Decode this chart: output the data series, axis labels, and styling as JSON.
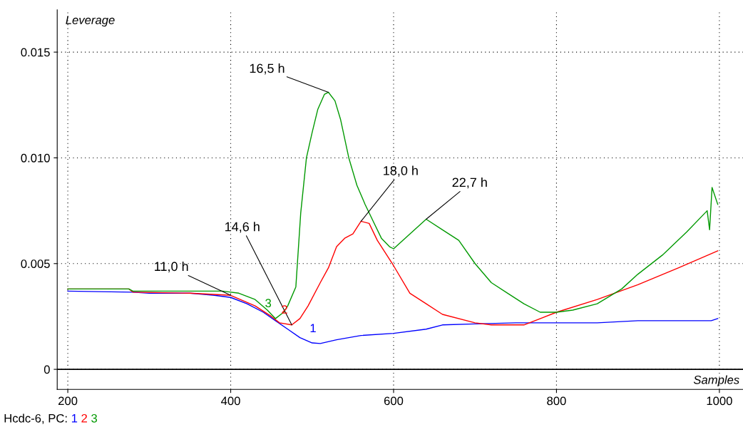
{
  "chart_data": {
    "type": "line",
    "xlabel": "Samples",
    "ylabel": "Leverage",
    "xlim": [
      187,
      1029
    ],
    "ylim": [
      -0.00095,
      0.017
    ],
    "xticks": [
      200,
      400,
      600,
      800,
      1000
    ],
    "yticks": [
      {
        "value": 0,
        "label": "0"
      },
      {
        "value": 0.005,
        "label": "0.005"
      },
      {
        "value": 0.01,
        "label": "0.010"
      },
      {
        "value": 0.015,
        "label": "0.015"
      }
    ],
    "grid": true,
    "legend": false,
    "marker": "none",
    "line_style": "solid",
    "ref_lines": [
      {
        "axis": "y",
        "value": 0,
        "color": "#000000",
        "line_style": "solid"
      }
    ],
    "series": [
      {
        "name": "1",
        "color": "#0000ff",
        "x": [
          200,
          280,
          300,
          350,
          380,
          400,
          420,
          440,
          455,
          470,
          485,
          500,
          510,
          530,
          560,
          600,
          640,
          660,
          700,
          750,
          800,
          850,
          900,
          950,
          990,
          998
        ],
        "values": [
          0.0037,
          0.00365,
          0.0036,
          0.0036,
          0.0035,
          0.0034,
          0.0031,
          0.0027,
          0.0023,
          0.0019,
          0.0015,
          0.00125,
          0.00122,
          0.0014,
          0.0016,
          0.0017,
          0.0019,
          0.0021,
          0.00215,
          0.0022,
          0.0022,
          0.0022,
          0.0023,
          0.0023,
          0.0023,
          0.0024
        ]
      },
      {
        "name": "2",
        "color": "#ff0000",
        "x": [
          200,
          275,
          280,
          350,
          400,
          430,
          450,
          460,
          475,
          485,
          495,
          510,
          520,
          530,
          540,
          550,
          560,
          570,
          580,
          590,
          600,
          620,
          640,
          660,
          700,
          720,
          760,
          800,
          850,
          900,
          950,
          998
        ],
        "values": [
          0.0038,
          0.0038,
          0.00365,
          0.0036,
          0.0035,
          0.003,
          0.0025,
          0.0022,
          0.0021,
          0.0024,
          0.003,
          0.0041,
          0.0048,
          0.0058,
          0.0062,
          0.0064,
          0.007,
          0.0069,
          0.0061,
          0.0055,
          0.0049,
          0.0036,
          0.0031,
          0.0026,
          0.0022,
          0.0021,
          0.0021,
          0.0027,
          0.0033,
          0.004,
          0.0048,
          0.0056
        ]
      },
      {
        "name": "3",
        "color": "#009900",
        "x": [
          200,
          275,
          280,
          350,
          390,
          410,
          430,
          445,
          455,
          465,
          470,
          480,
          486,
          493,
          500,
          507,
          515,
          520,
          528,
          535,
          545,
          555,
          565,
          575,
          585,
          595,
          600,
          620,
          640,
          660,
          680,
          700,
          720,
          740,
          760,
          780,
          800,
          820,
          850,
          880,
          900,
          930,
          960,
          985,
          988,
          991,
          998
        ],
        "values": [
          0.0038,
          0.0038,
          0.0037,
          0.0037,
          0.0037,
          0.0036,
          0.0033,
          0.0028,
          0.0024,
          0.0027,
          0.003,
          0.0039,
          0.0074,
          0.01,
          0.0112,
          0.0123,
          0.013,
          0.0131,
          0.0127,
          0.0118,
          0.01,
          0.0087,
          0.0078,
          0.007,
          0.0062,
          0.0058,
          0.0057,
          0.0064,
          0.0071,
          0.0066,
          0.0061,
          0.005,
          0.0041,
          0.0036,
          0.0031,
          0.0027,
          0.0027,
          0.0028,
          0.0031,
          0.0038,
          0.0045,
          0.0054,
          0.0065,
          0.0075,
          0.0066,
          0.0086,
          0.0078
        ]
      }
    ],
    "annotations": [
      {
        "text": "11,0 h",
        "x": 400,
        "y": 0.0035
      },
      {
        "text": "14,6 h",
        "x": 475,
        "y": 0.0021
      },
      {
        "text": "16,5 h",
        "x": 520,
        "y": 0.0131
      },
      {
        "text": "18,0 h",
        "x": 560,
        "y": 0.007
      },
      {
        "text": "22,7 h",
        "x": 640,
        "y": 0.0071
      },
      "Hcdc-6, PC:"
    ]
  }
}
